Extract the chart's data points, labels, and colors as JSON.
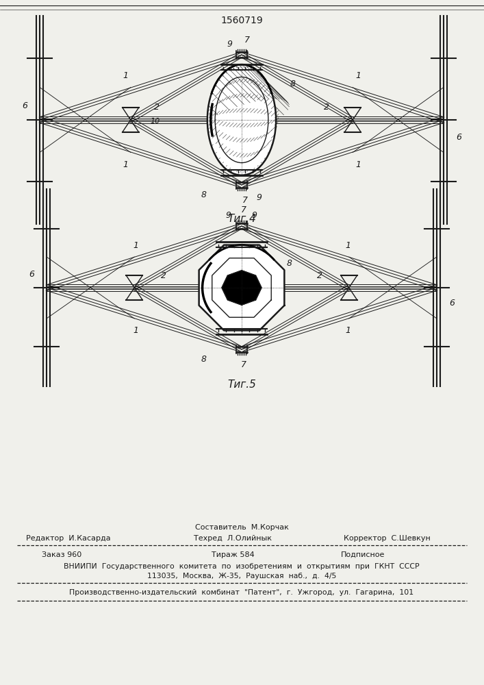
{
  "patent_number": "1560719",
  "fig4_label": "Τиг.4",
  "fig5_label": "Τиг.5",
  "bg_color": "#f0f0eb",
  "line_color": "#1a1a1a",
  "footer_sostavitel": "Составитель  М.Корчак",
  "footer_editor": "Редактор  И.Касарда",
  "footer_techred": "Техред  Л.Олийнык",
  "footer_korrektor": "Корректор  С.Шевкун",
  "footer_zakaz": "Заказ 960",
  "footer_tirazh": "Тираж 584",
  "footer_podpisnoe": "Подписное",
  "footer_vniipii_line1": "ВНИИПИ  Государственного  комитета  по  изобретениям  и  открытиям  при  ГКНТ  СССР",
  "footer_vniipii_line2": "113035,  Москва,  Ж-35,  Раушская  наб.,  д.  4/5",
  "footer_patent": "Производственно-издательский  комбинат  \"Патент\",  г.  Ужгород,  ул.  Гагарина,  101"
}
